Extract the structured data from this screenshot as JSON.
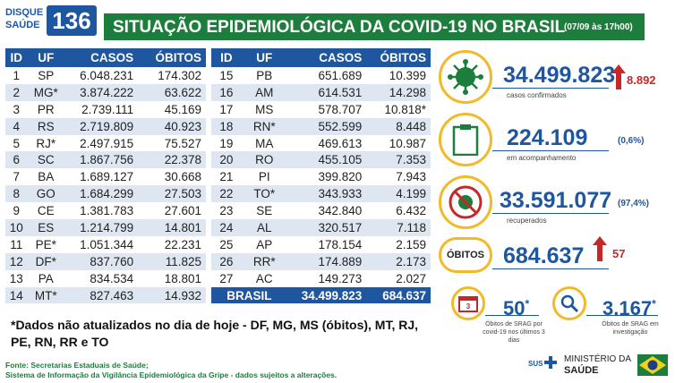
{
  "logo": {
    "line1": "DISQUE",
    "line2": "SAÚDE",
    "number": "136"
  },
  "banner": {
    "title": "SITUAÇÃO EPIDEMIOLÓGICA DA COVID-19 NO BRASIL",
    "date": "(07/09 às 17h00)"
  },
  "table_headers": {
    "id": "ID",
    "uf": "UF",
    "casos": "CASOS",
    "obitos": "ÓBITOS"
  },
  "table_left": [
    {
      "id": "1",
      "uf": "SP",
      "casos": "6.048.231",
      "obitos": "174.302"
    },
    {
      "id": "2",
      "uf": "MG*",
      "casos": "3.874.222",
      "obitos": "63.622"
    },
    {
      "id": "3",
      "uf": "PR",
      "casos": "2.739.111",
      "obitos": "45.169"
    },
    {
      "id": "4",
      "uf": "RS",
      "casos": "2.719.809",
      "obitos": "40.923"
    },
    {
      "id": "5",
      "uf": "RJ*",
      "casos": "2.497.915",
      "obitos": "75.527"
    },
    {
      "id": "6",
      "uf": "SC",
      "casos": "1.867.756",
      "obitos": "22.378"
    },
    {
      "id": "7",
      "uf": "BA",
      "casos": "1.689.127",
      "obitos": "30.668"
    },
    {
      "id": "8",
      "uf": "GO",
      "casos": "1.684.299",
      "obitos": "27.503"
    },
    {
      "id": "9",
      "uf": "CE",
      "casos": "1.381.783",
      "obitos": "27.601"
    },
    {
      "id": "10",
      "uf": "ES",
      "casos": "1.214.799",
      "obitos": "14.801"
    },
    {
      "id": "11",
      "uf": "PE*",
      "casos": "1.051.344",
      "obitos": "22.231"
    },
    {
      "id": "12",
      "uf": "DF*",
      "casos": "837.760",
      "obitos": "11.825"
    },
    {
      "id": "13",
      "uf": "PA",
      "casos": "834.534",
      "obitos": "18.801"
    },
    {
      "id": "14",
      "uf": "MT*",
      "casos": "827.463",
      "obitos": "14.932"
    }
  ],
  "table_right": [
    {
      "id": "15",
      "uf": "PB",
      "casos": "651.689",
      "obitos": "10.399"
    },
    {
      "id": "16",
      "uf": "AM",
      "casos": "614.531",
      "obitos": "14.298"
    },
    {
      "id": "17",
      "uf": "MS",
      "casos": "578.707",
      "obitos": "10.818*"
    },
    {
      "id": "18",
      "uf": "RN*",
      "casos": "552.599",
      "obitos": "8.448"
    },
    {
      "id": "19",
      "uf": "MA",
      "casos": "469.613",
      "obitos": "10.987"
    },
    {
      "id": "20",
      "uf": "RO",
      "casos": "455.105",
      "obitos": "7.353"
    },
    {
      "id": "21",
      "uf": "PI",
      "casos": "399.820",
      "obitos": "7.943"
    },
    {
      "id": "22",
      "uf": "TO*",
      "casos": "343.933",
      "obitos": "4.199"
    },
    {
      "id": "23",
      "uf": "SE",
      "casos": "342.840",
      "obitos": "6.432"
    },
    {
      "id": "24",
      "uf": "AL",
      "casos": "320.517",
      "obitos": "7.118"
    },
    {
      "id": "25",
      "uf": "AP",
      "casos": "178.154",
      "obitos": "2.159"
    },
    {
      "id": "26",
      "uf": "RR*",
      "casos": "174.889",
      "obitos": "2.173"
    },
    {
      "id": "27",
      "uf": "AC",
      "casos": "149.273",
      "obitos": "2.027"
    }
  ],
  "total": {
    "label": "BRASIL",
    "casos": "34.499.823",
    "obitos": "684.637"
  },
  "note": "*Dados não atualizados no dia de hoje - DF, MG, MS (óbitos), MT, RJ, PE, RN, RR e TO",
  "source_line1": "Fonte: Secretarias Estaduais de Saúde;",
  "source_line2": "Sistema de Informação da Vigilância Epidemiológica da Gripe - dados sujeitos a alterações.",
  "stats": {
    "confirmed": {
      "value": "34.499.823",
      "increase": "8.892",
      "label": "casos confirmados"
    },
    "monitoring": {
      "value": "224.109",
      "pct": "(0,6%)",
      "label": "em acompanhamento"
    },
    "recovered": {
      "value": "33.591.077",
      "pct": "(97,4%)",
      "label": "recuperados"
    },
    "deaths": {
      "circle_label": "ÓBITOS",
      "value": "684.637",
      "increase": "57"
    },
    "srag_deaths": {
      "value": "50",
      "star": "*",
      "label": "Óbitos de SRAG por covid-19 nos últimos 3 dias"
    },
    "srag_investigation": {
      "value": "3.167",
      "star": "*",
      "label": "Óbitos de SRAG em investigação"
    }
  },
  "footer": {
    "sus": "SUS",
    "ministry1": "MINISTÉRIO DA",
    "ministry2": "SAÚDE"
  },
  "colors": {
    "blue": "#1e56a0",
    "green": "#1d7d3c",
    "gold": "#f2b928",
    "red": "#c62828"
  }
}
